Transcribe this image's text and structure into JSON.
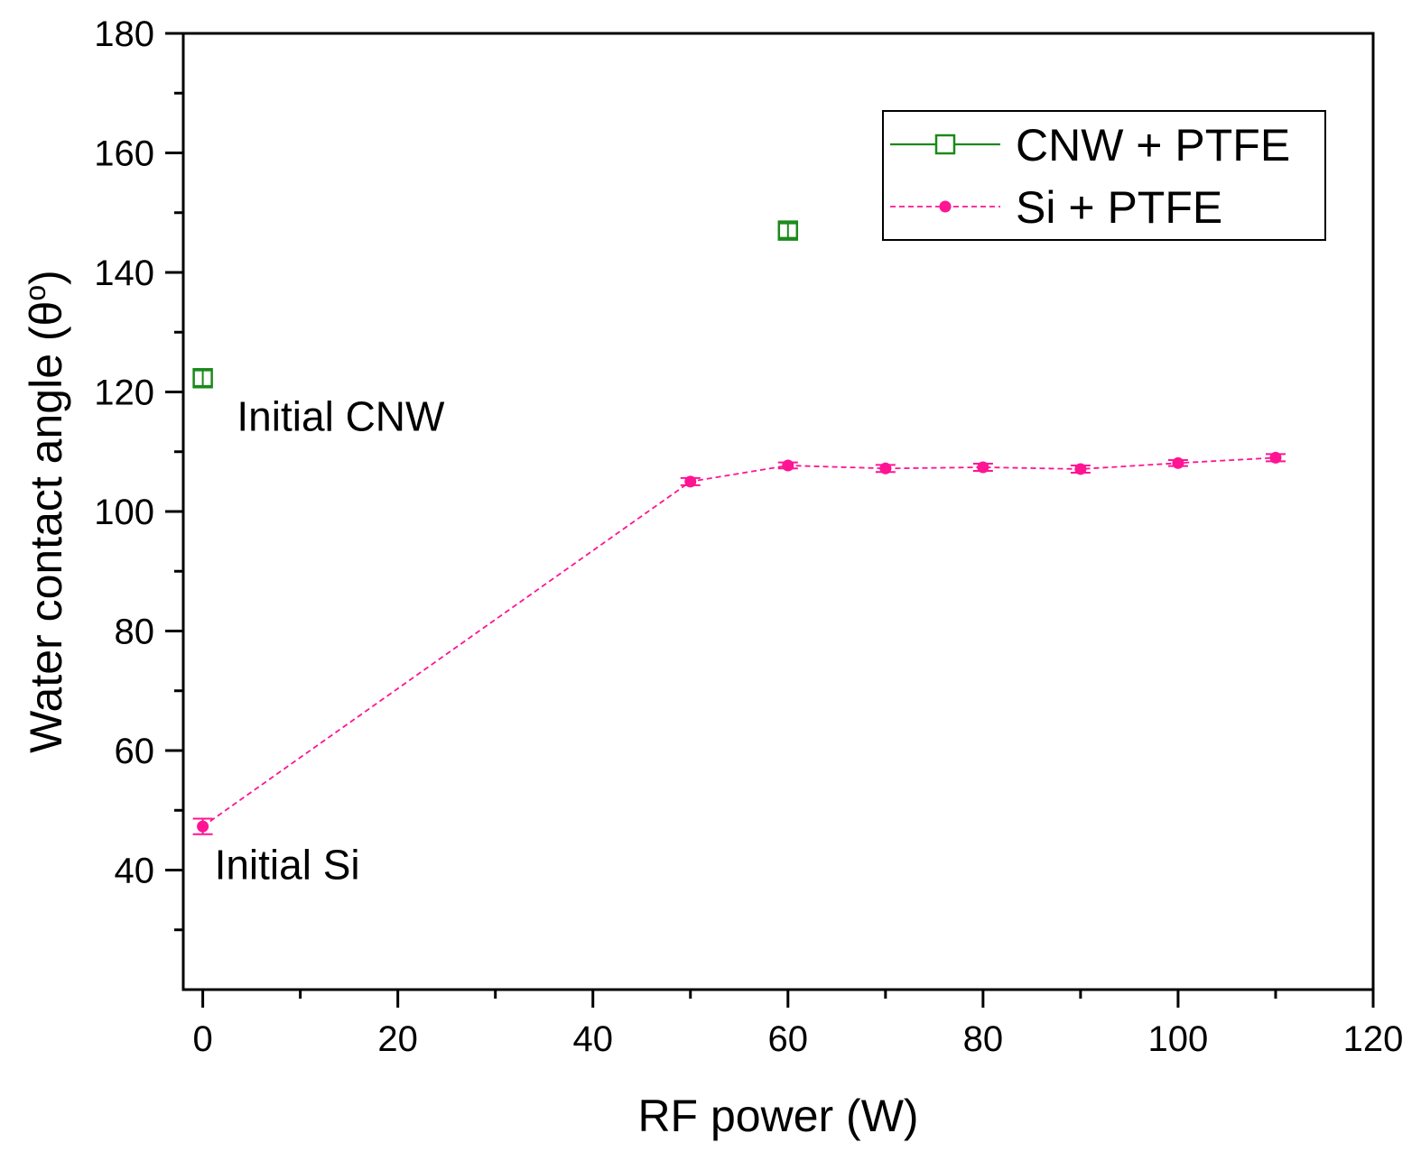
{
  "chart_data": {
    "type": "scatter",
    "xlabel": "RF power (W)",
    "ylabel_main": "Water contact angle (θ",
    "ylabel_sup": "o",
    "ylabel_close": ")",
    "xlim": [
      -2,
      120
    ],
    "ylim": [
      20,
      180
    ],
    "xticks": [
      0,
      20,
      40,
      60,
      80,
      100,
      120
    ],
    "yticks": [
      40,
      60,
      80,
      100,
      120,
      140,
      160,
      180
    ],
    "x_minor_step": 10,
    "y_minor_step": 10,
    "grid": false,
    "legend_position": "top-right",
    "series": [
      {
        "name": "CNW + PTFE",
        "color": "#1a8a1a",
        "marker": "open-square",
        "line": "solid",
        "connect": false,
        "x": [
          0,
          60
        ],
        "y": [
          122.3,
          147.0
        ],
        "err": [
          1.3,
          1.2
        ]
      },
      {
        "name": "Si + PTFE",
        "color": "#ff1493",
        "marker": "filled-circle",
        "line": "dashed",
        "connect": true,
        "x": [
          0,
          50,
          60,
          70,
          80,
          90,
          100,
          110
        ],
        "y": [
          47.3,
          105.0,
          107.7,
          107.2,
          107.4,
          107.1,
          108.1,
          109.0
        ],
        "err": [
          1.3,
          0.6,
          0.5,
          0.6,
          0.6,
          0.6,
          0.5,
          0.6
        ]
      }
    ],
    "annotations": [
      {
        "text": "Initial CNW",
        "x": 3.5,
        "y": 113.5
      },
      {
        "text": "Initial Si",
        "x": 1.2,
        "y": 38.5
      }
    ]
  }
}
